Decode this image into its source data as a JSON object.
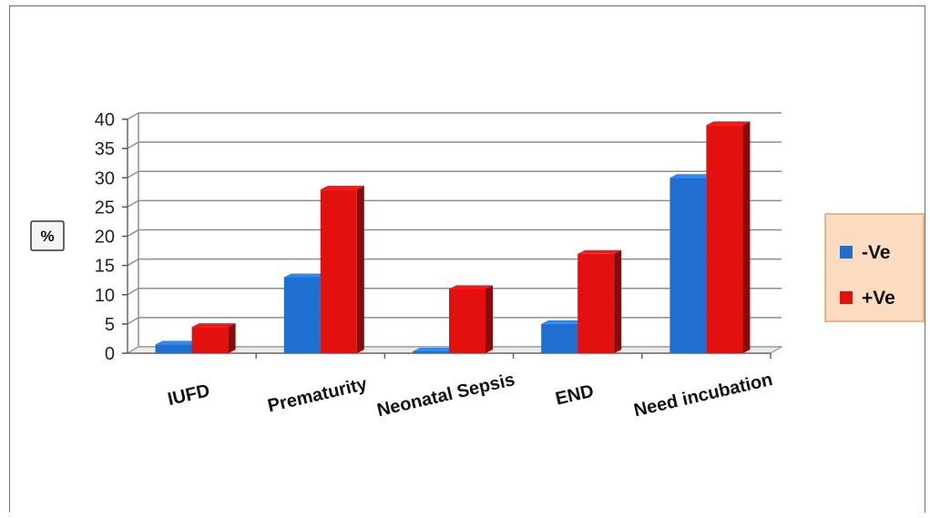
{
  "chart_data": {
    "type": "bar",
    "categories": [
      "IUFD",
      "Prematurity",
      "Neonatal Sepsis",
      "END",
      "Need incubation"
    ],
    "series": [
      {
        "name": "-Ve",
        "values": [
          1.5,
          13,
          0,
          5,
          30
        ],
        "color": "#1f6fd0"
      },
      {
        "name": "+Ve",
        "values": [
          4.5,
          28,
          11,
          17,
          39
        ],
        "color": "#e31010"
      }
    ],
    "ylabel": "%",
    "ylim": [
      0,
      40
    ],
    "yticks": [
      0,
      5,
      10,
      15,
      20,
      25,
      30,
      35,
      40
    ],
    "grid": true,
    "legend_position": "right"
  }
}
